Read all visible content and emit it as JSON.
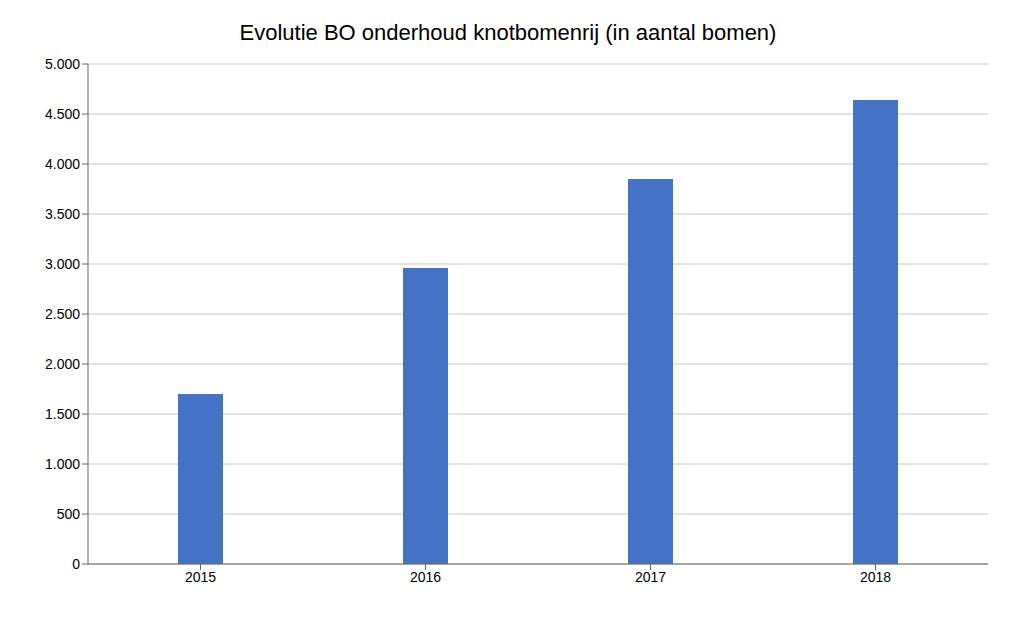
{
  "chart_data": {
    "type": "bar",
    "title": "Evolutie BO onderhoud knotbomenrij (in aantal bomen)",
    "categories": [
      "2015",
      "2016",
      "2017",
      "2018"
    ],
    "values": [
      1700,
      2960,
      3850,
      4640
    ],
    "color": "#4472C4",
    "ylim": [
      0,
      5000
    ],
    "yticks": [
      0,
      500,
      {
        "value": 1000,
        "label": "1.000"
      },
      {
        "value": 1500,
        "label": "1.500"
      },
      {
        "value": 2000,
        "label": "2.000"
      },
      {
        "value": 2500,
        "label": "2.500"
      },
      {
        "value": 3000,
        "label": "3.000"
      },
      {
        "value": 3500,
        "label": "3.500"
      },
      {
        "value": 4000,
        "label": "4.000"
      },
      {
        "value": 4500,
        "label": "4.500"
      },
      {
        "value": 5000,
        "label": "5.000"
      }
    ],
    "grid": true
  }
}
